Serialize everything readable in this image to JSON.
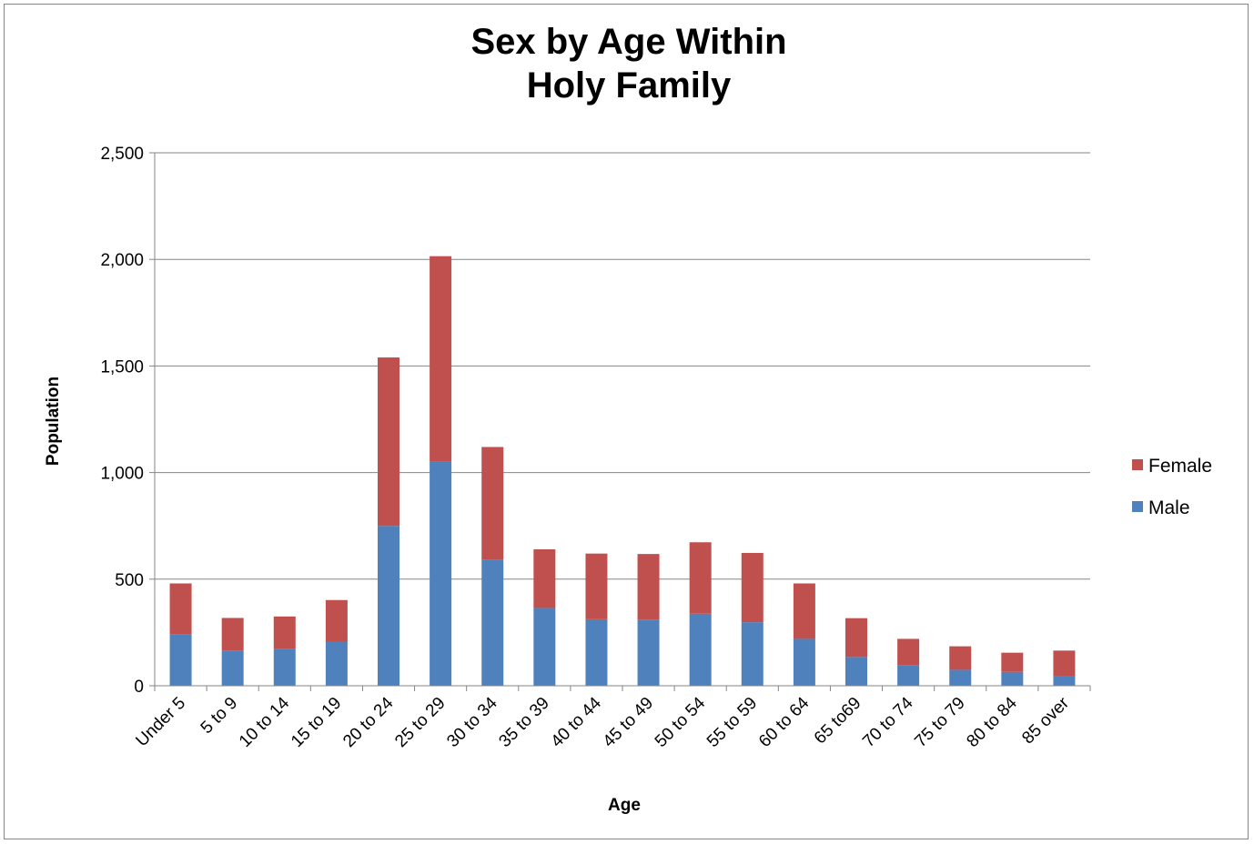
{
  "chart_data": {
    "type": "bar",
    "stacked": true,
    "title_line1": "Sex by Age Within",
    "title_line2": "Holy Family",
    "xlabel": "Age",
    "ylabel": "Population",
    "ylim": [
      0,
      2500
    ],
    "yticks": [
      {
        "value": 0,
        "label": "0"
      },
      {
        "value": 500,
        "label": "500"
      },
      {
        "value": 1000,
        "label": "1,000"
      },
      {
        "value": 1500,
        "label": "1,500"
      },
      {
        "value": 2000,
        "label": "2,000"
      },
      {
        "value": 2500,
        "label": "2,500"
      }
    ],
    "grid": true,
    "legend_position": "right",
    "categories": [
      "Under 5",
      "5 to 9",
      "10 to 14",
      "15 to 19",
      "20 to 24",
      "25 to 29",
      "30 to 34",
      "35 to 39",
      "40 to 44",
      "45 to 49",
      "50 to 54",
      "55 to 59",
      "60 to 64",
      "65 to69",
      "70 to 74",
      "75 to 79",
      "80 to 84",
      "85 over"
    ],
    "series": [
      {
        "name": "Male",
        "color": "#4F81BD",
        "values": [
          240,
          165,
          172,
          205,
          750,
          1050,
          590,
          365,
          312,
          310,
          338,
          298,
          220,
          135,
          95,
          75,
          65,
          45
        ]
      },
      {
        "name": "Female",
        "color": "#C0504D",
        "values": [
          240,
          153,
          153,
          197,
          790,
          965,
          530,
          275,
          308,
          308,
          335,
          325,
          260,
          182,
          125,
          110,
          90,
          120
        ]
      }
    ]
  }
}
